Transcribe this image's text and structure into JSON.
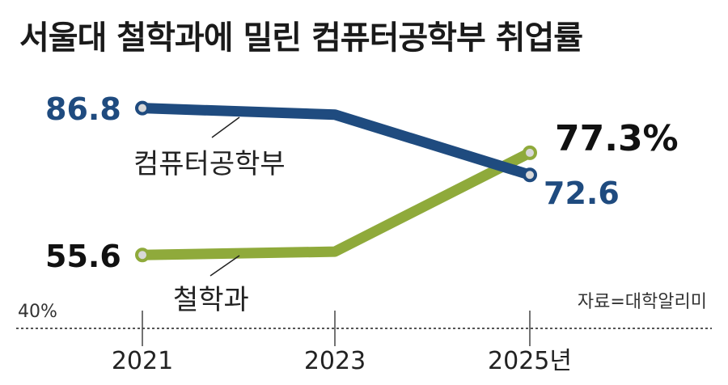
{
  "title": "서울대 철학과에 밀린 컴퓨터공학부 취업률",
  "source": "자료=대학알리미",
  "chart_data": {
    "type": "line",
    "categories": [
      "2021",
      "2023",
      "2025년"
    ],
    "ylim": [
      40,
      90
    ],
    "ytick_label": "40%",
    "grid": false,
    "series": [
      {
        "name": "컴퓨터공학부",
        "values": [
          86.8,
          85.4,
          72.6
        ],
        "color": "#1f4b7f",
        "start_label": "86.8",
        "end_label": "72.6"
      },
      {
        "name": "철학과",
        "values": [
          55.6,
          56.3,
          77.3
        ],
        "color": "#8faa3b",
        "start_label": "55.6",
        "end_label": "77.3%"
      }
    ]
  }
}
